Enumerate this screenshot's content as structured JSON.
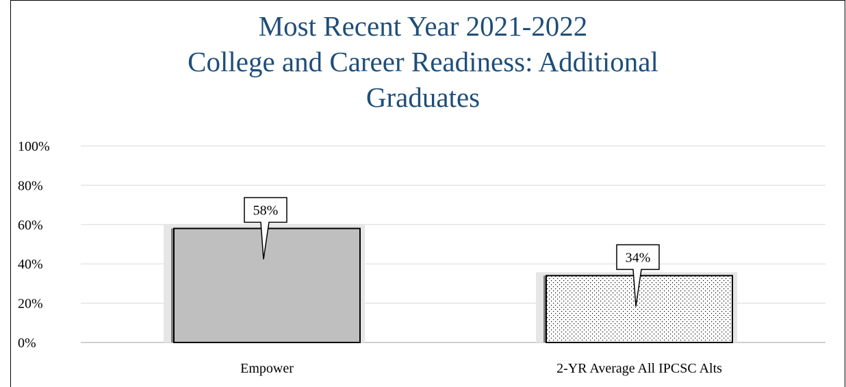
{
  "chart_data": {
    "type": "bar",
    "title": [
      "Most Recent Year 2021-2022",
      "College and Career Readiness:  Additional",
      "Graduates"
    ],
    "categories": [
      "Empower",
      "2-YR Average All IPCSC Alts"
    ],
    "values": [
      58,
      34
    ],
    "data_labels": [
      "58%",
      "34%"
    ],
    "ylim": [
      0,
      100
    ],
    "yticks": [
      0,
      20,
      40,
      60,
      80,
      100
    ],
    "ytick_labels": [
      "0%",
      "20%",
      "40%",
      "60%",
      "80%",
      "100%"
    ],
    "grid": true,
    "legend": "none",
    "bar_styles": [
      "solid-gray",
      "dotted"
    ],
    "colors": {
      "title": "#1f4e79",
      "bar_fill": "#bfbfbf",
      "bar_shadow": "#e6e6e6",
      "gridline": "#d9d9d9",
      "axis": "#bfbfbf"
    }
  }
}
